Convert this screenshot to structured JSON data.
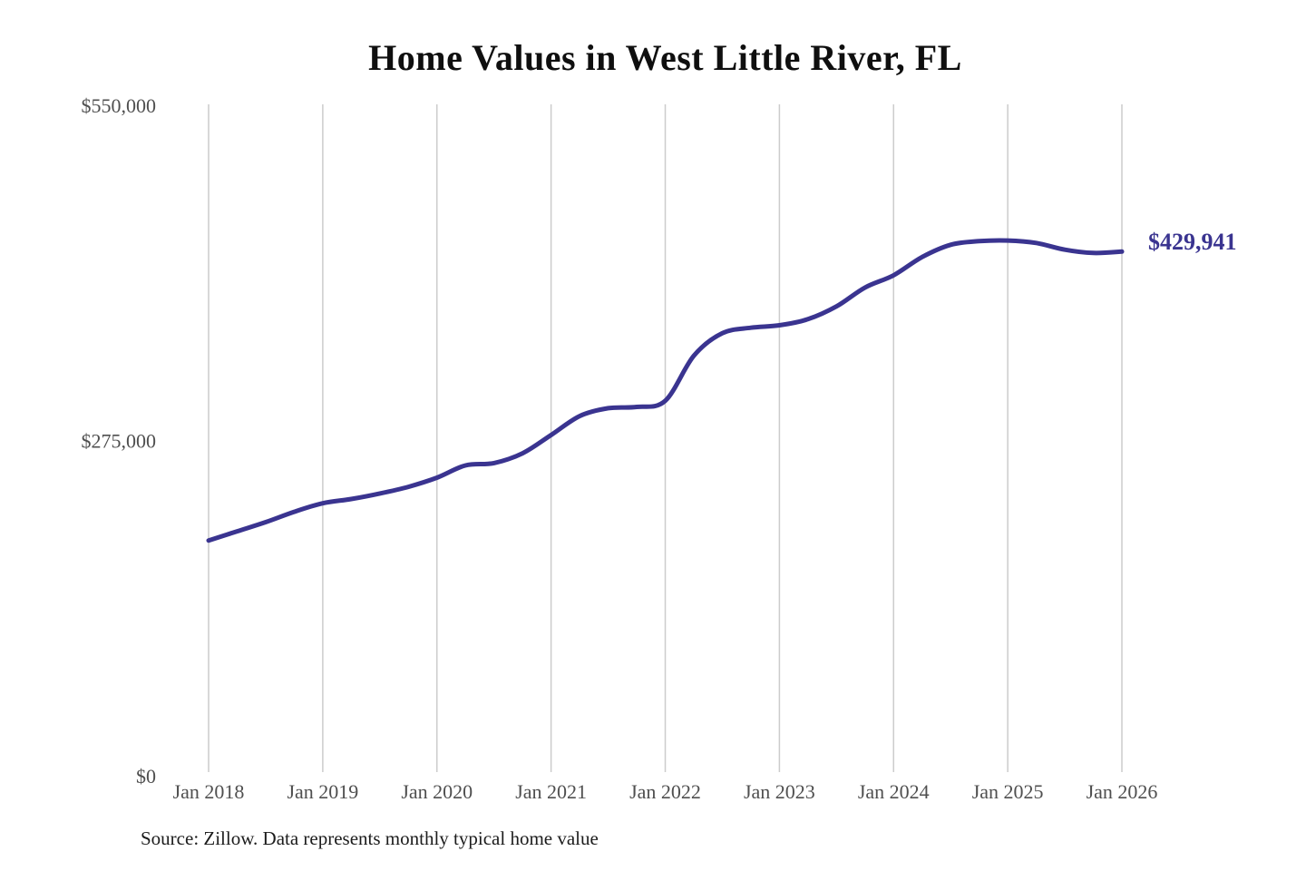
{
  "page": {
    "title": "Home Values in West Little River, FL",
    "source_note": "Source: Zillow. Data represents monthly typical home value"
  },
  "chart_data": {
    "type": "line",
    "title": "Home Values in West Little River, FL",
    "xlabel": "",
    "ylabel": "",
    "ylim": [
      0,
      550000
    ],
    "grid": "vertical-only",
    "legend": "none",
    "background_color": "#ffffff",
    "grid_color": "#cccccc",
    "tick_label_color": "#4f4f4f",
    "yticks": [
      {
        "value": 0,
        "label": "$0"
      },
      {
        "value": 275000,
        "label": "$275,000"
      },
      {
        "value": 550000,
        "label": "$550,000"
      }
    ],
    "xticks": [
      {
        "date": "2018-01",
        "label": "Jan 2018"
      },
      {
        "date": "2019-01",
        "label": "Jan 2019"
      },
      {
        "date": "2020-01",
        "label": "Jan 2020"
      },
      {
        "date": "2021-01",
        "label": "Jan 2021"
      },
      {
        "date": "2022-01",
        "label": "Jan 2022"
      },
      {
        "date": "2023-01",
        "label": "Jan 2023"
      },
      {
        "date": "2024-01",
        "label": "Jan 2024"
      },
      {
        "date": "2025-01",
        "label": "Jan 2025"
      },
      {
        "date": "2026-01",
        "label": "Jan 2026"
      }
    ],
    "series": [
      {
        "name": "Monthly typical home value",
        "color": "#3a3490",
        "end_label": "$429,941",
        "end_value": 429941,
        "dates": [
          "2018-01",
          "2018-04",
          "2018-07",
          "2018-10",
          "2019-01",
          "2019-04",
          "2019-07",
          "2019-10",
          "2020-01",
          "2020-04",
          "2020-07",
          "2020-10",
          "2021-01",
          "2021-04",
          "2021-07",
          "2021-10",
          "2022-01",
          "2022-04",
          "2022-07",
          "2022-10",
          "2023-01",
          "2023-04",
          "2023-07",
          "2023-10",
          "2024-01",
          "2024-04",
          "2024-07",
          "2024-10",
          "2025-01",
          "2025-04",
          "2025-07",
          "2025-10",
          "2026-01"
        ],
        "values": [
          193000,
          200500,
          208000,
          216500,
          223500,
          227000,
          231500,
          237000,
          244500,
          254500,
          256500,
          264500,
          279500,
          295000,
          301500,
          302500,
          307500,
          344500,
          363000,
          367500,
          369500,
          374500,
          385000,
          400500,
          410500,
          425500,
          435500,
          438500,
          439000,
          437000,
          431500,
          428800,
          429941
        ]
      }
    ]
  }
}
